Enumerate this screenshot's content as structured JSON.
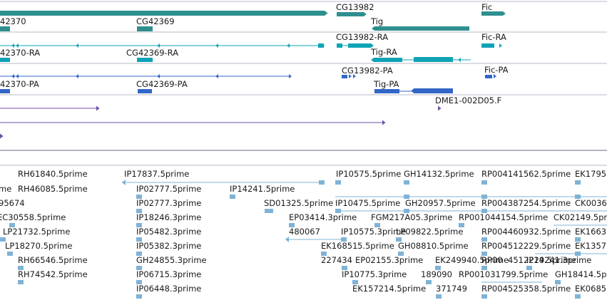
{
  "colors": {
    "gene": "#2f8f8f",
    "rna": "#10a3b5",
    "protein": "#3266c7",
    "clone": "#6f52a8",
    "est": "#7fb3d6",
    "divider": "#b8b8c8",
    "section_line": "#6a6a90"
  },
  "tracks": {
    "genes": {
      "features": [
        {
          "id": "g1",
          "name": "42370",
          "kind": "gene",
          "strand": "-"
        },
        {
          "id": "g2",
          "name": "CG42369",
          "kind": "gene",
          "strand": "-"
        },
        {
          "id": "g3",
          "name": "CG13982",
          "kind": "gene",
          "strand": "+"
        },
        {
          "id": "g4",
          "name": "Tig",
          "kind": "gene",
          "strand": "-"
        },
        {
          "id": "g5",
          "name": "Fic",
          "kind": "gene",
          "strand": "+"
        }
      ]
    },
    "transcripts": {
      "features": [
        {
          "id": "t1",
          "name": "42370-RA",
          "kind": "rna",
          "strand": "-"
        },
        {
          "id": "t2",
          "name": "CG42369-RA",
          "kind": "rna",
          "strand": "-"
        },
        {
          "id": "t3",
          "name": "CG13982-RA",
          "kind": "rna",
          "strand": "+"
        },
        {
          "id": "t4",
          "name": "Tig-RA",
          "kind": "rna",
          "strand": "-"
        },
        {
          "id": "t5",
          "name": "Fic-RA",
          "kind": "rna",
          "strand": "+"
        }
      ]
    },
    "proteins": {
      "features": [
        {
          "id": "p1",
          "name": "42370-PA",
          "kind": "protein",
          "strand": "-"
        },
        {
          "id": "p2",
          "name": "CG42369-PA",
          "kind": "protein",
          "strand": "-"
        },
        {
          "id": "p3",
          "name": "CG13982-PA",
          "kind": "protein",
          "strand": "+"
        },
        {
          "id": "p4",
          "name": "Tig-PA",
          "kind": "protein",
          "strand": "-"
        },
        {
          "id": "p5",
          "name": "Fic-PA",
          "kind": "protein",
          "strand": "+"
        }
      ]
    },
    "clones": {
      "features": [
        {
          "id": "c1",
          "name": "DME1-002D05.F",
          "kind": "clone",
          "strand": "+"
        }
      ]
    },
    "ests": {
      "labels": [
        "RH61840.5prime",
        "IP17837.5prime",
        "IP10575.5prime",
        "GH14132.5prime",
        "RP004141562.5prime",
        "EK1795",
        "me",
        "RH46085.5prime",
        "IP02777.5prime",
        "IP14241.5prime",
        "95674",
        "IP02777.3prime",
        "SD01325.5prime",
        "IP10475.5prime",
        "GH20957.5prime",
        "RP004387254.5prime",
        "CK0036",
        "EC30558.5prime",
        "IP18246.3prime",
        "EP03414.3prime",
        "FGM217A05.3prime",
        "RP001044154.5prime",
        "CK02149.5pr",
        "LP21732.5prime",
        "IP05482.3prime",
        "480067",
        "IP10575.3prime",
        "LP09822.5prime",
        "RP004460932.5prime",
        "EK1663",
        "LP18270.5prime",
        "IP05382.3prime",
        "EK16851",
        "5.5prime",
        "GH08810.5prime",
        "RP004512229.5prime",
        "EK1357",
        "RH66546.5prime",
        "GH24855.3prime",
        "227434",
        "EP02155.3prime",
        "EK249940.5prime",
        "RP00",
        "4512229.5prime",
        "IP14241.3prime",
        "RH74542.5prime",
        "IP06715.3prime",
        "IP10775.3prime",
        "189090",
        "RP001031799.5prime",
        "GH18414.5p",
        "IP06448.3prime",
        "EK157214.5prime",
        "371749",
        "RP004525358.5prime",
        "EK0685"
      ]
    }
  }
}
